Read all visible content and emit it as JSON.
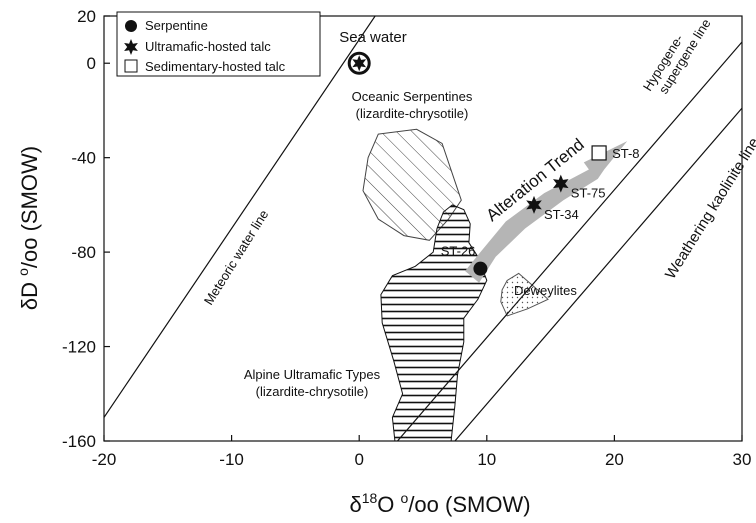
{
  "chart_data": {
    "type": "scatter",
    "xlabel_prefix": "δ",
    "xlabel_sup": "18",
    "xlabel_main": "O ",
    "xlabel_unit": "o/oo (SMOW)",
    "ylabel": "δD o/oo (SMOW)",
    "xlim": [
      -20,
      30
    ],
    "ylim": [
      -160,
      20
    ],
    "x_ticks": [
      -20,
      -10,
      0,
      10,
      20,
      30
    ],
    "y_ticks": [
      20,
      0,
      -40,
      -80,
      -120,
      -160
    ],
    "legend": [
      {
        "marker": "circle",
        "label": "Serpentine"
      },
      {
        "marker": "star",
        "label": "Ultramafic-hosted talc"
      },
      {
        "marker": "square",
        "label": "Sedimentary-hosted talc"
      }
    ],
    "points": [
      {
        "label": "ST-26",
        "x": 9.5,
        "y": -87,
        "marker": "circle"
      },
      {
        "label": "ST-34",
        "x": 13.7,
        "y": -60,
        "marker": "star"
      },
      {
        "label": "ST-75",
        "x": 15.8,
        "y": -51,
        "marker": "star"
      },
      {
        "label": "ST-8",
        "x": 18.8,
        "y": -38,
        "marker": "square"
      },
      {
        "label": "Sea water",
        "x": 0,
        "y": 0,
        "marker": "circled-star"
      }
    ],
    "lines": [
      {
        "label": "Meteoric water line",
        "x1": -20,
        "y1": -150,
        "x2": 12.5,
        "y2": 110
      },
      {
        "label": "Hypogene-supergene line",
        "x1": 3,
        "y1": -160,
        "x2": 30,
        "y2": 9
      },
      {
        "label": "Weathering kaolinite line",
        "x1": 7.5,
        "y1": -160,
        "x2": 30,
        "y2": -19
      }
    ],
    "regions": [
      {
        "label_line1": "Oceanic Serpentines",
        "label_line2": "(lizardite-chrysotile)",
        "fill": "diagonal-hatch"
      },
      {
        "label_line1": "Alpine Ultramafic Types",
        "label_line2": "(lizardite-chrysotile)",
        "fill": "horizontal-hatch"
      },
      {
        "label_line1": "Deweylites",
        "fill": "dots"
      }
    ],
    "trend_label": "Alteration Trend",
    "grid": false,
    "legend_position": "top-left"
  }
}
